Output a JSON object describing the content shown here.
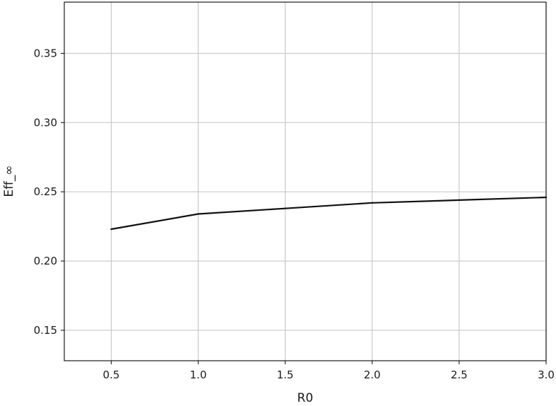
{
  "chart_data": {
    "type": "line",
    "xlabel": "R0",
    "ylabel": "Eff_∞",
    "xlim": [
      0.23,
      3.0
    ],
    "ylim": [
      0.128,
      0.387
    ],
    "grid": true,
    "x_ticks": [
      "0.5",
      "1.0",
      "1.5",
      "2.0",
      "2.5",
      "3.0"
    ],
    "y_ticks": [
      "0.15",
      "0.20",
      "0.25",
      "0.30",
      "0.35"
    ],
    "series": [
      {
        "color": "#111111",
        "x": [
          0.5,
          1.0,
          1.5,
          2.0,
          2.5,
          3.0
        ],
        "y": [
          0.223,
          0.234,
          0.238,
          0.242,
          0.244,
          0.246
        ]
      }
    ]
  }
}
